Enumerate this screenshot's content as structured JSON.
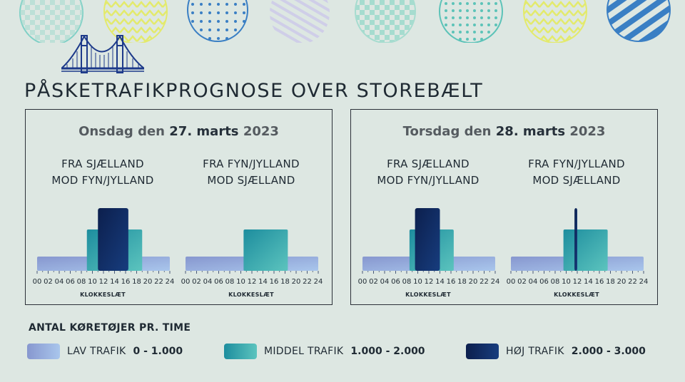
{
  "title": "PÅSKETRAFIKPROGNOSE OVER STOREBÆLT",
  "colors": {
    "lav": "#8fa6d8",
    "middel": "#2ba3a8",
    "hoj": "#0f2657",
    "background": "#dde7e2"
  },
  "icons": [
    "easter-egg-decoration",
    "bridge-icon"
  ],
  "panels": [
    {
      "title_prefix": "Onsdag den",
      "title_date": "27. marts",
      "title_year": "2023",
      "directions": [
        {
          "line1": "FRA SJÆLLAND",
          "line2": "MOD FYN/JYLLAND",
          "xlabel": "KLOKKESLÆT"
        },
        {
          "line1": "FRA FYN/JYLLAND",
          "line2": "MOD SJÆLLAND",
          "xlabel": "KLOKKESLÆT"
        }
      ]
    },
    {
      "title_prefix": "Torsdag den",
      "title_date": "28. marts",
      "title_year": "2023",
      "directions": [
        {
          "line1": "FRA SJÆLLAND",
          "line2": "MOD FYN/JYLLAND",
          "xlabel": "KLOKKESLÆT"
        },
        {
          "line1": "FRA FYN/JYLLAND",
          "line2": "MOD SJÆLLAND",
          "xlabel": "KLOKKESLÆT"
        }
      ]
    }
  ],
  "chart_data": [
    {
      "type": "bar",
      "xlabel": "KLOKKESLÆT",
      "x_ticks": [
        "00",
        "02",
        "04",
        "06",
        "08",
        "10",
        "12",
        "14",
        "16",
        "18",
        "20",
        "22",
        "24"
      ],
      "levels": [
        "LAV TRAFIK",
        "MIDDEL TRAFIK",
        "HØJ TRAFIK"
      ],
      "segments": [
        {
          "start": 0,
          "end": 24,
          "level": "LAV TRAFIK"
        },
        {
          "start": 9,
          "end": 19,
          "level": "MIDDEL TRAFIK"
        },
        {
          "start": 11,
          "end": 16.5,
          "level": "HØJ TRAFIK"
        }
      ]
    },
    {
      "type": "bar",
      "xlabel": "KLOKKESLÆT",
      "x_ticks": [
        "00",
        "02",
        "04",
        "06",
        "08",
        "10",
        "12",
        "14",
        "16",
        "18",
        "20",
        "22",
        "24"
      ],
      "levels": [
        "LAV TRAFIK",
        "MIDDEL TRAFIK",
        "HØJ TRAFIK"
      ],
      "segments": [
        {
          "start": 0,
          "end": 24,
          "level": "LAV TRAFIK"
        },
        {
          "start": 10.5,
          "end": 18.5,
          "level": "MIDDEL TRAFIK"
        }
      ]
    },
    {
      "type": "bar",
      "xlabel": "KLOKKESLÆT",
      "x_ticks": [
        "00",
        "02",
        "04",
        "06",
        "08",
        "10",
        "12",
        "14",
        "16",
        "18",
        "20",
        "22",
        "24"
      ],
      "levels": [
        "LAV TRAFIK",
        "MIDDEL TRAFIK",
        "HØJ TRAFIK"
      ],
      "segments": [
        {
          "start": 0,
          "end": 24,
          "level": "LAV TRAFIK"
        },
        {
          "start": 8.5,
          "end": 16.5,
          "level": "MIDDEL TRAFIK"
        },
        {
          "start": 9.5,
          "end": 14,
          "level": "HØJ TRAFIK"
        }
      ]
    },
    {
      "type": "bar",
      "xlabel": "KLOKKESLÆT",
      "x_ticks": [
        "00",
        "02",
        "04",
        "06",
        "08",
        "10",
        "12",
        "14",
        "16",
        "18",
        "20",
        "22",
        "24"
      ],
      "levels": [
        "LAV TRAFIK",
        "MIDDEL TRAFIK",
        "HØJ TRAFIK"
      ],
      "segments": [
        {
          "start": 0,
          "end": 24,
          "level": "LAV TRAFIK"
        },
        {
          "start": 9.5,
          "end": 17.5,
          "level": "MIDDEL TRAFIK"
        },
        {
          "start": 11.5,
          "end": 12,
          "level": "HØJ TRAFIK"
        }
      ]
    }
  ],
  "legend": {
    "title": "ANTAL KØRETØJER PR. TIME",
    "items": [
      {
        "label": "LAV TRAFIK",
        "range": "0 - 1.000"
      },
      {
        "label": "MIDDEL TRAFIK",
        "range": "1.000 - 2.000"
      },
      {
        "label": "HØJ TRAFIK",
        "range": "2.000 - 3.000"
      }
    ]
  }
}
